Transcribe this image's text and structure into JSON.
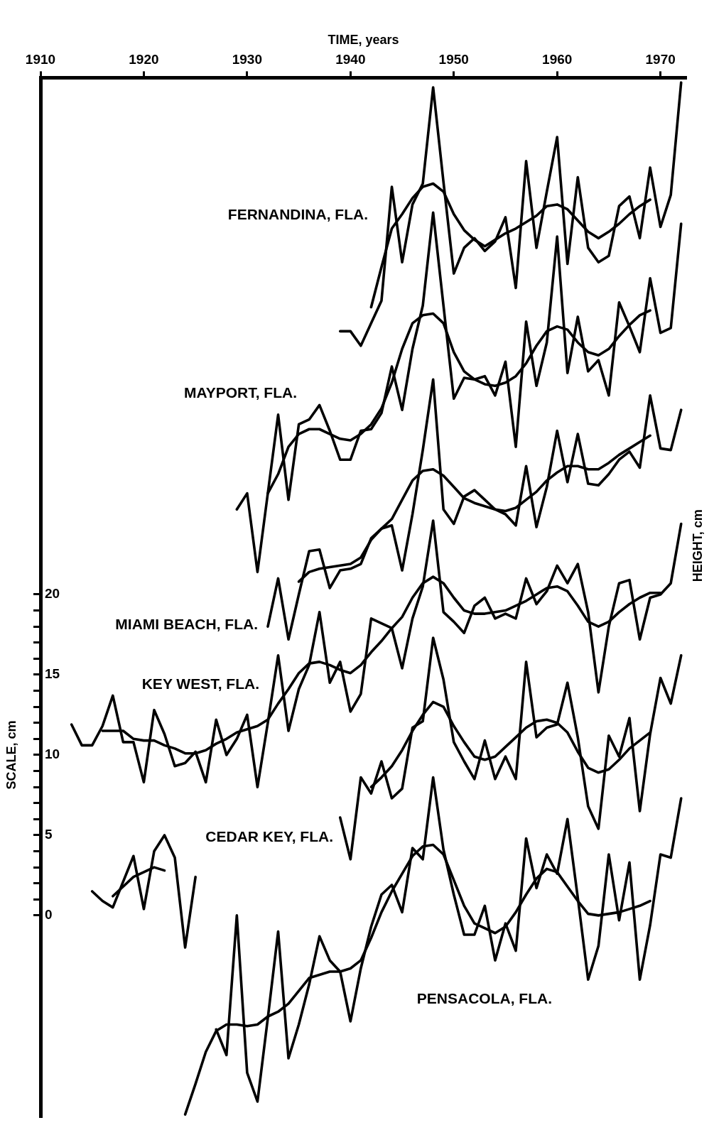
{
  "chart_data": {
    "type": "line",
    "xlabel": "TIME, years",
    "ylabel": "SCALE, cm",
    "y2label": "HEIGHT, cm",
    "marker": "none",
    "xlim": [
      1910,
      1972.5
    ],
    "xticks": [
      1910,
      1920,
      1930,
      1940,
      1950,
      1960,
      1970
    ],
    "ylim": [
      -12.6,
      52.2
    ],
    "yticks": [
      0,
      {
        "value": 1,
        "label": null
      },
      {
        "value": 2,
        "label": null
      },
      {
        "value": 3,
        "label": null
      },
      {
        "value": 4,
        "label": null
      },
      5,
      {
        "value": 6,
        "label": null
      },
      {
        "value": 7,
        "label": null
      },
      {
        "value": 8,
        "label": null
      },
      {
        "value": 9,
        "label": null
      },
      10,
      {
        "value": 11,
        "label": null
      },
      {
        "value": 12,
        "label": null
      },
      {
        "value": 13,
        "label": null
      },
      {
        "value": 14,
        "label": null
      },
      15,
      {
        "value": 16,
        "label": null
      },
      {
        "value": 17,
        "label": null
      },
      {
        "value": 18,
        "label": null
      },
      {
        "value": 19,
        "label": null
      },
      20
    ],
    "series": [
      {
        "name": "FERNANDINA, FLA.",
        "color": "#000000",
        "x": [
          1939,
          1940,
          1941,
          1942,
          1943,
          1944,
          1945,
          1946,
          1947,
          1948,
          1949,
          1950,
          1951,
          1952,
          1953,
          1954,
          1955,
          1956,
          1957,
          1958,
          1959,
          1960,
          1961,
          1962,
          1963,
          1964,
          1965,
          1966,
          1967,
          1968,
          1969,
          1970,
          1971,
          1972
        ],
        "values": [
          36.4,
          36.4,
          35.5,
          36.9,
          38.3,
          45.4,
          40.7,
          44.3,
          45.6,
          51.6,
          45.7,
          40.0,
          41.6,
          42.2,
          41.4,
          42.0,
          43.5,
          39.1,
          47.0,
          41.6,
          45.1,
          48.5,
          40.6,
          46.0,
          41.6,
          40.7,
          41.1,
          44.2,
          44.8,
          42.2,
          46.6,
          42.9,
          44.9,
          51.9
        ]
      },
      {
        "color": "#000000",
        "x": [
          1942,
          1943,
          1944,
          1945,
          1946,
          1947,
          1948,
          1949,
          1950,
          1951,
          1952,
          1953,
          1954,
          1955,
          1956,
          1957,
          1958,
          1959,
          1960,
          1961,
          1962,
          1963,
          1964,
          1965,
          1966,
          1967,
          1968,
          1969
        ],
        "values": [
          37.9,
          40.4,
          42.8,
          43.7,
          44.7,
          45.4,
          45.6,
          45.1,
          43.7,
          42.7,
          42.1,
          41.7,
          42.1,
          42.5,
          42.8,
          43.2,
          43.6,
          44.2,
          44.3,
          44.0,
          43.3,
          42.6,
          42.2,
          42.6,
          43.1,
          43.7,
          44.2,
          44.6
        ]
      },
      {
        "name": "MAYPORT, FLA.",
        "color": "#000000",
        "x": [
          1929,
          1930,
          1931,
          1932,
          1933,
          1934,
          1935,
          1936,
          1937,
          1938,
          1939,
          1940,
          1941,
          1942,
          1943,
          1944,
          1945,
          1946,
          1947,
          1948,
          1949,
          1950,
          1951,
          1952,
          1953,
          1954,
          1955,
          1956,
          1957,
          1958,
          1959,
          1960,
          1961,
          1962,
          1963,
          1964,
          1965,
          1966,
          1967,
          1968,
          1969,
          1970,
          1971,
          1972
        ],
        "values": [
          25.3,
          26.3,
          21.4,
          26.3,
          31.2,
          25.9,
          30.6,
          30.9,
          31.8,
          30.2,
          28.4,
          28.4,
          30.2,
          30.3,
          31.3,
          34.2,
          31.5,
          35.3,
          38.0,
          43.8,
          38.0,
          32.2,
          33.5,
          33.4,
          33.6,
          32.4,
          34.5,
          29.2,
          37.0,
          33.0,
          35.7,
          42.3,
          33.8,
          37.3,
          33.9,
          34.6,
          32.4,
          38.2,
          36.7,
          35.1,
          39.7,
          36.3,
          36.6,
          43.1
        ]
      },
      {
        "color": "#000000",
        "x": [
          1932,
          1933,
          1934,
          1935,
          1936,
          1937,
          1938,
          1939,
          1940,
          1941,
          1942,
          1943,
          1944,
          1945,
          1946,
          1947,
          1948,
          1949,
          1950,
          1951,
          1952,
          1953,
          1954,
          1955,
          1956,
          1957,
          1958,
          1959,
          1960,
          1961,
          1962,
          1963,
          1964,
          1965,
          1966,
          1967,
          1968,
          1969
        ],
        "values": [
          26.3,
          27.5,
          29.2,
          30.0,
          30.3,
          30.3,
          30.0,
          29.7,
          29.6,
          30.0,
          30.6,
          31.6,
          33.2,
          35.3,
          36.9,
          37.4,
          37.5,
          36.9,
          35.1,
          33.9,
          33.4,
          33.1,
          33.0,
          33.2,
          33.6,
          34.4,
          35.5,
          36.4,
          36.7,
          36.5,
          35.7,
          35.1,
          34.9,
          35.3,
          36.1,
          36.8,
          37.4,
          37.7
        ]
      },
      {
        "name": "MIAMI BEACH, FLA.",
        "color": "#000000",
        "x": [
          1932,
          1933,
          1934,
          1935,
          1936,
          1937,
          1938,
          1939,
          1940,
          1941,
          1942,
          1943,
          1944,
          1945,
          1946,
          1947,
          1948,
          1949,
          1950,
          1951,
          1952,
          1953,
          1954,
          1955,
          1956,
          1957,
          1958,
          1959,
          1960,
          1961,
          1962,
          1963,
          1964,
          1965,
          1966,
          1967,
          1968,
          1969,
          1970,
          1971,
          1972
        ],
        "values": [
          18.0,
          21.0,
          17.2,
          20.0,
          22.7,
          22.8,
          20.4,
          21.5,
          21.6,
          21.9,
          23.5,
          24.1,
          24.3,
          21.5,
          25.0,
          29.0,
          33.4,
          25.3,
          24.4,
          26.1,
          26.5,
          25.9,
          25.3,
          25.0,
          24.3,
          28.0,
          24.2,
          26.7,
          30.2,
          27.0,
          30.0,
          26.9,
          26.8,
          27.5,
          28.4,
          28.9,
          27.9,
          32.4,
          29.1,
          29.0,
          31.5
        ]
      },
      {
        "color": "#000000",
        "x": [
          1935,
          1936,
          1937,
          1938,
          1939,
          1940,
          1941,
          1942,
          1943,
          1944,
          1945,
          1946,
          1947,
          1948,
          1949,
          1950,
          1951,
          1952,
          1953,
          1954,
          1955,
          1956,
          1957,
          1958,
          1959,
          1960,
          1961,
          1962,
          1963,
          1964,
          1965,
          1966,
          1967,
          1968,
          1969
        ],
        "values": [
          20.8,
          21.4,
          21.6,
          21.7,
          21.8,
          21.9,
          22.3,
          23.4,
          24.1,
          24.7,
          25.9,
          27.1,
          27.7,
          27.8,
          27.4,
          26.7,
          26.0,
          25.7,
          25.5,
          25.3,
          25.2,
          25.4,
          25.9,
          26.4,
          27.1,
          27.6,
          28.0,
          28.0,
          27.8,
          27.8,
          28.2,
          28.7,
          29.1,
          29.5,
          29.9
        ]
      },
      {
        "name": "KEY WEST, FLA.",
        "color": "#000000",
        "x": [
          1913,
          1914,
          1915,
          1916,
          1917,
          1918,
          1919,
          1920,
          1921,
          1922,
          1923,
          1924,
          1925,
          1926,
          1927,
          1928,
          1929,
          1930,
          1931,
          1932,
          1933,
          1934,
          1935,
          1936,
          1937,
          1938,
          1939,
          1940,
          1941,
          1942,
          1943,
          1944,
          1945,
          1946,
          1947,
          1948,
          1949,
          1950,
          1951,
          1952,
          1953,
          1954,
          1955,
          1956,
          1957,
          1958,
          1959,
          1960,
          1961,
          1962,
          1963,
          1964,
          1965,
          1966,
          1967,
          1968,
          1969,
          1970,
          1971,
          1972
        ],
        "values": [
          11.9,
          10.6,
          10.6,
          11.8,
          13.7,
          10.8,
          10.8,
          8.3,
          12.8,
          11.3,
          9.3,
          9.5,
          10.2,
          8.3,
          12.2,
          10.0,
          11.0,
          12.5,
          8.0,
          12.0,
          16.2,
          11.5,
          14.1,
          15.6,
          18.9,
          14.5,
          15.8,
          12.7,
          13.8,
          18.5,
          18.2,
          17.9,
          15.4,
          18.5,
          20.5,
          24.6,
          18.9,
          18.3,
          17.6,
          19.3,
          19.8,
          18.5,
          18.8,
          18.5,
          21.0,
          19.4,
          20.2,
          21.8,
          20.7,
          21.9,
          18.9,
          13.9,
          18.0,
          20.7,
          20.9,
          17.2,
          19.8,
          20.0,
          20.7,
          24.4
        ]
      },
      {
        "color": "#000000",
        "x": [
          1916,
          1917,
          1918,
          1919,
          1920,
          1921,
          1922,
          1923,
          1924,
          1925,
          1926,
          1927,
          1928,
          1929,
          1930,
          1931,
          1932,
          1933,
          1934,
          1935,
          1936,
          1937,
          1938,
          1939,
          1940,
          1941,
          1942,
          1943,
          1944,
          1945,
          1946,
          1947,
          1948,
          1949,
          1950,
          1951,
          1952,
          1953,
          1954,
          1955,
          1956,
          1957,
          1958,
          1959,
          1960,
          1961,
          1962,
          1963,
          1964,
          1965,
          1966,
          1967,
          1968,
          1969,
          1970
        ],
        "values": [
          11.5,
          11.5,
          11.5,
          11.0,
          10.9,
          10.9,
          10.6,
          10.4,
          10.1,
          10.1,
          10.3,
          10.7,
          11.0,
          11.4,
          11.6,
          11.8,
          12.2,
          13.2,
          14.1,
          15.1,
          15.7,
          15.8,
          15.6,
          15.3,
          15.1,
          15.6,
          16.4,
          17.1,
          17.9,
          18.6,
          19.8,
          20.7,
          21.1,
          20.7,
          19.8,
          19.0,
          18.8,
          18.8,
          18.9,
          19.0,
          19.3,
          19.6,
          20.0,
          20.4,
          20.5,
          20.2,
          19.3,
          18.3,
          18.0,
          18.3,
          18.9,
          19.4,
          19.8,
          20.1,
          20.1
        ]
      },
      {
        "color": "#000000",
        "x": [
          1915,
          1916,
          1917,
          1918,
          1919,
          1920,
          1921,
          1922,
          1923,
          1924,
          1925
        ],
        "values": [
          1.5,
          0.9,
          0.5,
          2.1,
          3.7,
          0.4,
          4.0,
          5.0,
          3.6,
          -2.0,
          2.4
        ]
      },
      {
        "color": "#000000",
        "x": [
          1917,
          1918,
          1919,
          1920,
          1921,
          1922
        ],
        "values": [
          1.2,
          1.8,
          2.4,
          2.7,
          3.0,
          2.8
        ]
      },
      {
        "color": "#000000",
        "x": [
          1939,
          1940,
          1941,
          1942,
          1943,
          1944,
          1945,
          1946,
          1947,
          1948,
          1949,
          1950,
          1951,
          1952,
          1953,
          1954,
          1955,
          1956,
          1957,
          1958,
          1959,
          1960,
          1961,
          1962,
          1963,
          1964,
          1965,
          1966,
          1967,
          1968,
          1969,
          1970,
          1971,
          1972
        ],
        "name": "CEDAR KEY, FLA.",
        "values": [
          6.1,
          3.5,
          8.6,
          7.6,
          9.6,
          7.3,
          7.9,
          11.7,
          12.1,
          17.3,
          14.7,
          10.8,
          9.6,
          8.5,
          10.9,
          8.5,
          9.9,
          8.5,
          15.8,
          11.1,
          11.7,
          11.9,
          14.5,
          11.1,
          6.8,
          5.4,
          11.2,
          9.9,
          12.3,
          6.5,
          11.3,
          14.8,
          13.2,
          16.2
        ]
      },
      {
        "color": "#000000",
        "x": [
          1942,
          1943,
          1944,
          1945,
          1946,
          1947,
          1948,
          1949,
          1950,
          1951,
          1952,
          1953,
          1954,
          1955,
          1956,
          1957,
          1958,
          1959,
          1960,
          1961,
          1962,
          1963,
          1964,
          1965,
          1966,
          1967,
          1968,
          1969
        ],
        "values": [
          8.0,
          8.6,
          9.3,
          10.3,
          11.5,
          12.5,
          13.3,
          13.0,
          11.8,
          10.8,
          9.9,
          9.7,
          9.9,
          10.5,
          11.1,
          11.7,
          12.1,
          12.2,
          12.0,
          11.4,
          10.2,
          9.2,
          8.9,
          9.1,
          9.7,
          10.4,
          10.9,
          11.4
        ]
      },
      {
        "name": "PENSACOLA, FLA.",
        "color": "#000000",
        "x": [
          1927,
          1928,
          1929,
          1930,
          1931,
          1932,
          1933,
          1934,
          1935,
          1936,
          1937,
          1938,
          1939,
          1940,
          1941,
          1942,
          1943,
          1944,
          1945,
          1946,
          1947,
          1948,
          1949,
          1950,
          1951,
          1952,
          1953,
          1954,
          1955,
          1956,
          1957,
          1958,
          1959,
          1960,
          1961,
          1962,
          1963,
          1964,
          1965,
          1966,
          1967,
          1968,
          1969,
          1970,
          1971,
          1972
        ],
        "values": [
          -7.1,
          -8.7,
          0.0,
          -9.8,
          -11.6,
          -6.4,
          -1.0,
          -8.9,
          -6.8,
          -4.3,
          -1.3,
          -2.8,
          -3.5,
          -6.6,
          -3.3,
          -0.7,
          1.3,
          1.9,
          0.2,
          4.2,
          3.5,
          8.6,
          4.1,
          1.3,
          -1.2,
          -1.2,
          0.6,
          -2.8,
          -0.5,
          -2.2,
          4.8,
          1.7,
          3.8,
          2.6,
          6.0,
          1.1,
          -4.0,
          -1.9,
          3.8,
          -0.3,
          3.3,
          -4.0,
          -0.6,
          3.8,
          3.6,
          7.3
        ]
      },
      {
        "color": "#000000",
        "x": [
          1924,
          1925,
          1926,
          1927,
          1928,
          1929,
          1930,
          1931,
          1932,
          1933,
          1934,
          1935,
          1936,
          1937,
          1938,
          1939,
          1940,
          1941,
          1942,
          1943,
          1944,
          1945,
          1946,
          1947,
          1948,
          1949,
          1950,
          1951,
          1952,
          1953,
          1954,
          1955,
          1956,
          1957,
          1958,
          1959,
          1960,
          1961,
          1962,
          1963,
          1964,
          1965,
          1966,
          1967,
          1968,
          1969
        ],
        "values": [
          -12.4,
          -10.5,
          -8.5,
          -7.2,
          -6.8,
          -6.8,
          -6.9,
          -6.8,
          -6.3,
          -6.0,
          -5.5,
          -4.7,
          -3.9,
          -3.7,
          -3.5,
          -3.5,
          -3.3,
          -2.8,
          -1.4,
          0.2,
          1.5,
          2.6,
          3.7,
          4.3,
          4.4,
          3.8,
          2.2,
          0.6,
          -0.5,
          -0.8,
          -1.1,
          -0.7,
          0.2,
          1.3,
          2.3,
          2.9,
          2.7,
          1.8,
          0.9,
          0.1,
          0.0,
          0.1,
          0.2,
          0.4,
          0.6,
          0.9
        ]
      }
    ]
  }
}
